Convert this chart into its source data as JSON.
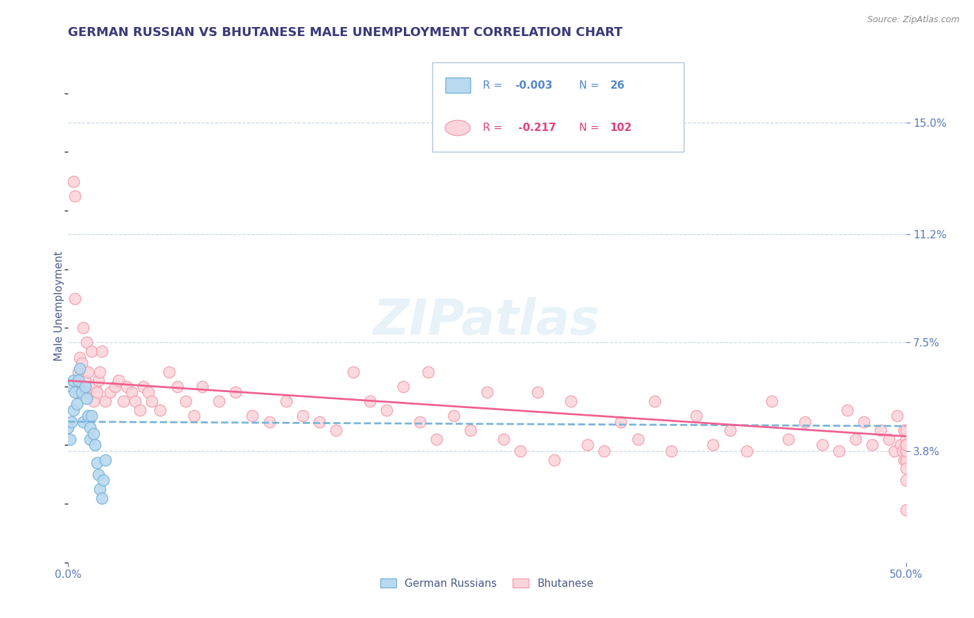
{
  "title": "GERMAN RUSSIAN VS BHUTANESE MALE UNEMPLOYMENT CORRELATION CHART",
  "source": "Source: ZipAtlas.com",
  "ylabel": "Male Unemployment",
  "xlim": [
    0.0,
    0.5
  ],
  "ylim": [
    0.0,
    0.175
  ],
  "yticks": [
    0.038,
    0.075,
    0.112,
    0.15
  ],
  "ytick_labels": [
    "3.8%",
    "7.5%",
    "11.2%",
    "15.0%"
  ],
  "xtick_labels": [
    "0.0%",
    "50.0%"
  ],
  "legend_label1": "German Russians",
  "legend_label2": "Bhutanese",
  "watermark": "ZIPatlas",
  "blue_fill": "#b8d9f0",
  "blue_edge": "#7ab4d8",
  "pink_fill": "#fcd5dc",
  "pink_edge": "#f4a0b0",
  "blue_line_color": "#7ab4d8",
  "pink_line_color": "#f06090",
  "title_color": "#3a3a7a",
  "axis_label_color": "#4a5a8a",
  "tick_color": "#5a7ab8",
  "grid_color": "#c8d8e8",
  "legend_text_blue": "#5588cc",
  "legend_text_pink": "#e04080",
  "gr_x": [
    0.0,
    0.001,
    0.002,
    0.002,
    0.003,
    0.003,
    0.004,
    0.005,
    0.006,
    0.007,
    0.008,
    0.009,
    0.01,
    0.011,
    0.012,
    0.013,
    0.013,
    0.014,
    0.015,
    0.016,
    0.017,
    0.018,
    0.019,
    0.02,
    0.021,
    0.022
  ],
  "gr_y": [
    0.046,
    0.042,
    0.06,
    0.048,
    0.062,
    0.052,
    0.058,
    0.054,
    0.062,
    0.066,
    0.058,
    0.048,
    0.06,
    0.056,
    0.05,
    0.046,
    0.042,
    0.05,
    0.044,
    0.04,
    0.034,
    0.03,
    0.025,
    0.022,
    0.028,
    0.035
  ],
  "bh_x": [
    0.003,
    0.004,
    0.004,
    0.005,
    0.006,
    0.006,
    0.007,
    0.008,
    0.009,
    0.01,
    0.01,
    0.011,
    0.012,
    0.013,
    0.014,
    0.015,
    0.016,
    0.017,
    0.018,
    0.019,
    0.02,
    0.022,
    0.025,
    0.028,
    0.03,
    0.033,
    0.035,
    0.038,
    0.04,
    0.043,
    0.045,
    0.048,
    0.05,
    0.055,
    0.06,
    0.065,
    0.07,
    0.075,
    0.08,
    0.09,
    0.1,
    0.11,
    0.12,
    0.13,
    0.14,
    0.15,
    0.16,
    0.17,
    0.18,
    0.19,
    0.2,
    0.21,
    0.215,
    0.22,
    0.23,
    0.24,
    0.25,
    0.26,
    0.27,
    0.28,
    0.29,
    0.3,
    0.31,
    0.32,
    0.33,
    0.34,
    0.35,
    0.36,
    0.375,
    0.385,
    0.395,
    0.405,
    0.42,
    0.43,
    0.44,
    0.45,
    0.46,
    0.465,
    0.47,
    0.475,
    0.48,
    0.485,
    0.49,
    0.493,
    0.495,
    0.497,
    0.498,
    0.499,
    0.499,
    0.5,
    0.5,
    0.5,
    0.5,
    0.5,
    0.5,
    0.5,
    0.5,
    0.5,
    0.5,
    0.5,
    0.5,
    0.5
  ],
  "bh_y": [
    0.13,
    0.09,
    0.125,
    0.06,
    0.058,
    0.065,
    0.07,
    0.068,
    0.08,
    0.058,
    0.062,
    0.075,
    0.065,
    0.06,
    0.072,
    0.055,
    0.06,
    0.058,
    0.062,
    0.065,
    0.072,
    0.055,
    0.058,
    0.06,
    0.062,
    0.055,
    0.06,
    0.058,
    0.055,
    0.052,
    0.06,
    0.058,
    0.055,
    0.052,
    0.065,
    0.06,
    0.055,
    0.05,
    0.06,
    0.055,
    0.058,
    0.05,
    0.048,
    0.055,
    0.05,
    0.048,
    0.045,
    0.065,
    0.055,
    0.052,
    0.06,
    0.048,
    0.065,
    0.042,
    0.05,
    0.045,
    0.058,
    0.042,
    0.038,
    0.058,
    0.035,
    0.055,
    0.04,
    0.038,
    0.048,
    0.042,
    0.055,
    0.038,
    0.05,
    0.04,
    0.045,
    0.038,
    0.055,
    0.042,
    0.048,
    0.04,
    0.038,
    0.052,
    0.042,
    0.048,
    0.04,
    0.045,
    0.042,
    0.038,
    0.05,
    0.04,
    0.038,
    0.045,
    0.035,
    0.042,
    0.038,
    0.04,
    0.035,
    0.045,
    0.038,
    0.04,
    0.035,
    0.038,
    0.04,
    0.018,
    0.032,
    0.028
  ]
}
